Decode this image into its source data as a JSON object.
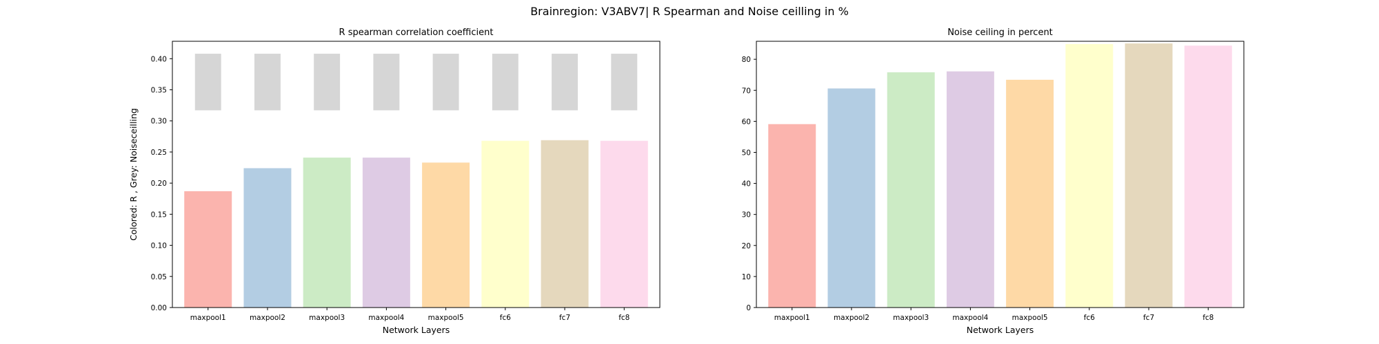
{
  "figure": {
    "suptitle": "Brainregion: V3ABV7| R Spearman and Noise ceilling in %"
  },
  "chart_data": [
    {
      "type": "bar",
      "title": "R spearman correlation coefficient",
      "xlabel": "Network Layers",
      "ylabel": "Colored: R , Grey: Noiseceilling",
      "ylim": [
        0,
        0.428
      ],
      "yticks": [
        0.0,
        0.05,
        0.1,
        0.15,
        0.2,
        0.25,
        0.3,
        0.35,
        0.4
      ],
      "ytick_labels": [
        "0.00",
        "0.05",
        "0.10",
        "0.15",
        "0.20",
        "0.25",
        "0.30",
        "0.35",
        "0.40"
      ],
      "grid": false,
      "categories": [
        "maxpool1",
        "maxpool2",
        "maxpool3",
        "maxpool4",
        "maxpool5",
        "fc6",
        "fc7",
        "fc8"
      ],
      "series": [
        {
          "values": [
            0.187,
            0.224,
            0.241,
            0.241,
            0.233,
            0.268,
            0.269,
            0.268
          ],
          "colors": [
            "#fbb4ae",
            "#b3cde3",
            "#ccebc5",
            "#decbe4",
            "#fed9a6",
            "#ffffcc",
            "#e5d8bd",
            "#fddaec"
          ]
        }
      ],
      "noise_ceiling": {
        "lower": [
          0.317,
          0.317,
          0.317,
          0.317,
          0.317,
          0.317,
          0.317,
          0.317
        ],
        "upper": [
          0.408,
          0.408,
          0.408,
          0.408,
          0.408,
          0.408,
          0.408,
          0.408
        ],
        "color": "#d6d6d6"
      }
    },
    {
      "type": "bar",
      "title": "Noise ceiling in percent",
      "xlabel": "Network Layers",
      "ylabel": "",
      "ylim": [
        0,
        85.8
      ],
      "yticks": [
        0,
        10,
        20,
        30,
        40,
        50,
        60,
        70,
        80
      ],
      "ytick_labels": [
        "0",
        "10",
        "20",
        "30",
        "40",
        "50",
        "60",
        "70",
        "80"
      ],
      "grid": false,
      "categories": [
        "maxpool1",
        "maxpool2",
        "maxpool3",
        "maxpool4",
        "maxpool5",
        "fc6",
        "fc7",
        "fc8"
      ],
      "series": [
        {
          "values": [
            59.1,
            70.6,
            75.8,
            76.1,
            73.4,
            84.9,
            85.1,
            84.4
          ],
          "colors": [
            "#fbb4ae",
            "#b3cde3",
            "#ccebc5",
            "#decbe4",
            "#fed9a6",
            "#ffffcc",
            "#e5d8bd",
            "#fddaec"
          ]
        }
      ]
    }
  ]
}
